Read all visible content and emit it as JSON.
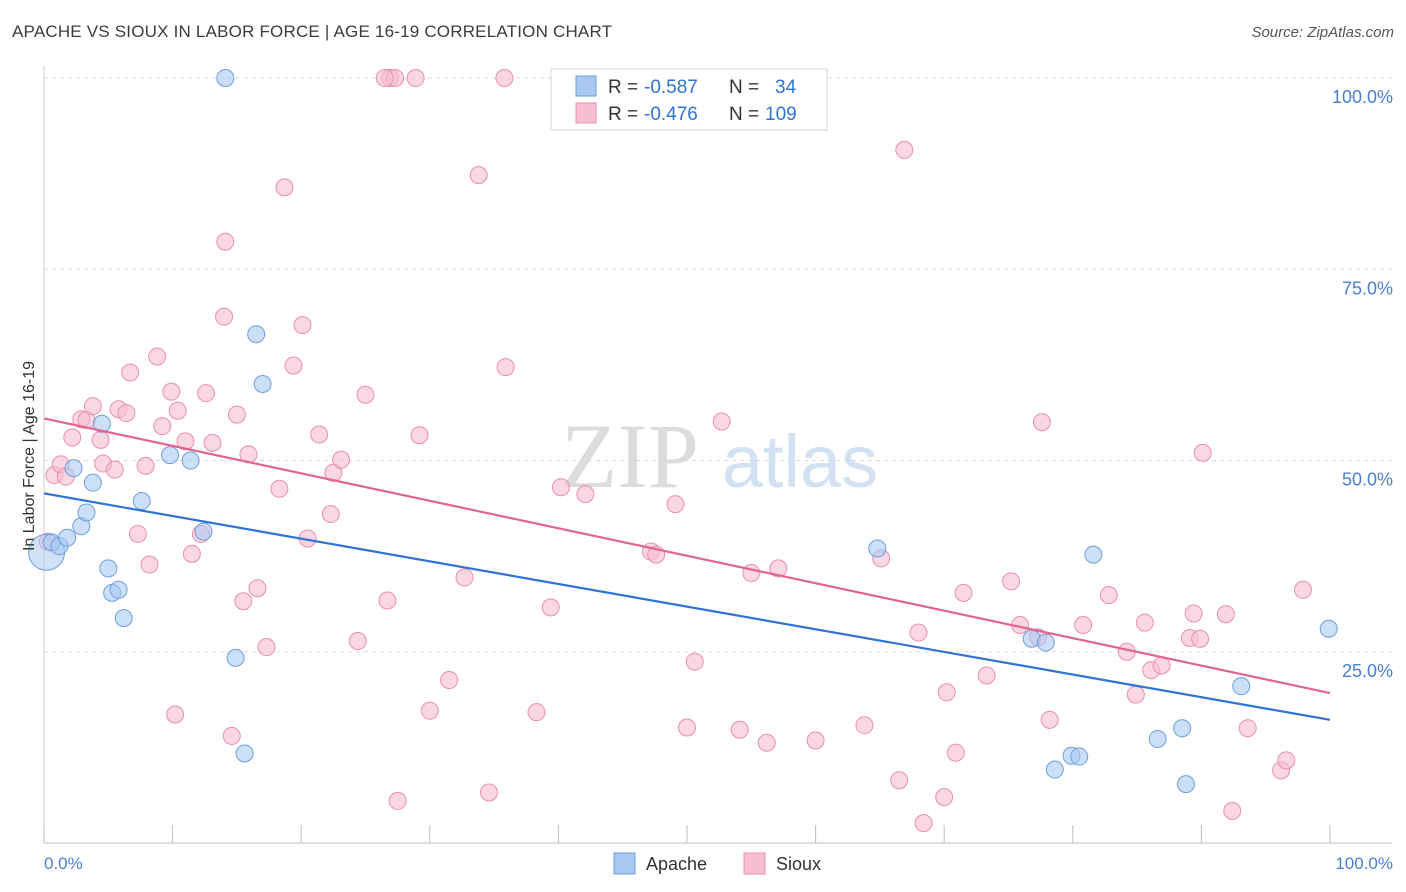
{
  "title": "APACHE VS SIOUX IN LABOR FORCE | AGE 16-19 CORRELATION CHART",
  "source": "Source: ZipAtlas.com",
  "watermark": {
    "zip": "ZIP",
    "atlas": "atlas"
  },
  "colors": {
    "apache_fill": "#a9c9f2",
    "apache_stroke": "#6f9fdb",
    "apache_line": "#2f73d6",
    "sioux_fill": "#f7bdd0",
    "sioux_stroke": "#ea8fae",
    "sioux_line": "#e2658f",
    "tick_label": "#4a7fd0",
    "grid": "#d9d9d9"
  },
  "chart_data": {
    "type": "scatter",
    "title": "APACHE VS SIOUX IN LABOR FORCE | AGE 16-19 CORRELATION CHART",
    "xlabel": "",
    "ylabel": "In Labor Force | Age 16-19",
    "xlim": [
      0,
      100
    ],
    "ylim": [
      0,
      100
    ],
    "x_tick_labels": [
      {
        "value": 0,
        "label": "0.0%"
      },
      {
        "value": 100,
        "label": "100.0%"
      }
    ],
    "y_tick_labels": [
      {
        "value": 25,
        "label": "25.0%"
      },
      {
        "value": 50,
        "label": "50.0%"
      },
      {
        "value": 75,
        "label": "75.0%"
      },
      {
        "value": 100,
        "label": "100.0%"
      }
    ],
    "grid": true,
    "legend": [
      {
        "name": "Apache",
        "r_label": "R =",
        "r_value": "-0.587",
        "n_label": "N =",
        "n_value": "34"
      },
      {
        "name": "Sioux",
        "r_label": "R =",
        "r_value": "-0.476",
        "n_label": "N =",
        "n_value": "109"
      }
    ],
    "series": [
      {
        "name": "Apache",
        "trend": {
          "x0": 0,
          "y0": 45.7,
          "x1": 100,
          "y1": 16.1
        },
        "points": [
          [
            0.2,
            38.0
          ],
          [
            0.6,
            39.3
          ],
          [
            1.2,
            38.8
          ],
          [
            1.8,
            39.9
          ],
          [
            2.3,
            49.0
          ],
          [
            2.9,
            41.4
          ],
          [
            3.3,
            43.2
          ],
          [
            3.8,
            47.1
          ],
          [
            4.5,
            54.8
          ],
          [
            5.0,
            35.9
          ],
          [
            5.3,
            32.7
          ],
          [
            5.8,
            33.1
          ],
          [
            6.2,
            29.4
          ],
          [
            7.6,
            44.7
          ],
          [
            9.8,
            50.7
          ],
          [
            11.4,
            50.0
          ],
          [
            12.4,
            40.7
          ],
          [
            14.1,
            100.0
          ],
          [
            14.9,
            24.2
          ],
          [
            15.6,
            11.7
          ],
          [
            16.5,
            66.5
          ],
          [
            17.0,
            60.0
          ],
          [
            64.8,
            38.5
          ],
          [
            76.8,
            26.7
          ],
          [
            77.9,
            26.2
          ],
          [
            78.6,
            9.6
          ],
          [
            79.9,
            11.4
          ],
          [
            80.5,
            11.3
          ],
          [
            81.6,
            37.7
          ],
          [
            86.6,
            13.6
          ],
          [
            88.5,
            15.0
          ],
          [
            88.8,
            7.7
          ],
          [
            93.1,
            20.5
          ],
          [
            99.9,
            28.0
          ]
        ]
      },
      {
        "name": "Sioux",
        "trend": {
          "x0": 0,
          "y0": 55.5,
          "x1": 100,
          "y1": 19.6
        },
        "points": [
          [
            0.3,
            39.4
          ],
          [
            0.8,
            48.1
          ],
          [
            1.3,
            49.5
          ],
          [
            1.7,
            47.9
          ],
          [
            2.2,
            53.0
          ],
          [
            2.9,
            55.4
          ],
          [
            3.3,
            55.3
          ],
          [
            3.8,
            57.1
          ],
          [
            4.4,
            52.7
          ],
          [
            4.6,
            49.6
          ],
          [
            5.5,
            48.8
          ],
          [
            5.8,
            56.7
          ],
          [
            6.4,
            56.2
          ],
          [
            6.7,
            61.5
          ],
          [
            7.3,
            40.4
          ],
          [
            7.9,
            49.3
          ],
          [
            8.2,
            36.4
          ],
          [
            8.8,
            63.6
          ],
          [
            9.2,
            54.5
          ],
          [
            9.9,
            59.0
          ],
          [
            10.2,
            16.8
          ],
          [
            10.4,
            56.5
          ],
          [
            11.0,
            52.5
          ],
          [
            11.5,
            37.8
          ],
          [
            12.2,
            40.4
          ],
          [
            12.6,
            58.8
          ],
          [
            13.1,
            52.3
          ],
          [
            14.1,
            78.6
          ],
          [
            14.0,
            68.8
          ],
          [
            14.6,
            14.0
          ],
          [
            15.0,
            56.0
          ],
          [
            15.5,
            31.6
          ],
          [
            15.9,
            50.8
          ],
          [
            16.6,
            33.3
          ],
          [
            17.3,
            25.6
          ],
          [
            18.3,
            46.3
          ],
          [
            18.7,
            85.7
          ],
          [
            19.4,
            62.4
          ],
          [
            20.1,
            67.7
          ],
          [
            20.5,
            39.8
          ],
          [
            21.4,
            53.4
          ],
          [
            22.3,
            43.0
          ],
          [
            22.5,
            48.4
          ],
          [
            23.1,
            50.1
          ],
          [
            24.4,
            26.4
          ],
          [
            25.0,
            58.6
          ],
          [
            26.7,
            31.7
          ],
          [
            26.9,
            100.0
          ],
          [
            27.3,
            100.0
          ],
          [
            27.5,
            5.5
          ],
          [
            28.9,
            100.0
          ],
          [
            29.2,
            53.3
          ],
          [
            30.0,
            17.3
          ],
          [
            31.5,
            21.3
          ],
          [
            32.7,
            34.7
          ],
          [
            33.8,
            87.3
          ],
          [
            34.6,
            6.6
          ],
          [
            35.8,
            100.0
          ],
          [
            35.9,
            62.2
          ],
          [
            38.3,
            17.1
          ],
          [
            39.4,
            30.8
          ],
          [
            40.2,
            46.5
          ],
          [
            42.1,
            45.6
          ],
          [
            44.1,
            100.0
          ],
          [
            47.2,
            38.1
          ],
          [
            47.6,
            37.7
          ],
          [
            49.1,
            44.3
          ],
          [
            50.0,
            15.1
          ],
          [
            50.6,
            23.7
          ],
          [
            52.7,
            55.1
          ],
          [
            54.1,
            14.8
          ],
          [
            55.0,
            35.3
          ],
          [
            56.2,
            13.1
          ],
          [
            57.1,
            35.9
          ],
          [
            60.0,
            13.4
          ],
          [
            63.8,
            15.4
          ],
          [
            65.1,
            37.2
          ],
          [
            66.5,
            8.2
          ],
          [
            66.9,
            90.6
          ],
          [
            68.0,
            27.5
          ],
          [
            68.4,
            2.6
          ],
          [
            70.0,
            6.0
          ],
          [
            70.2,
            19.7
          ],
          [
            70.9,
            11.8
          ],
          [
            71.5,
            32.7
          ],
          [
            73.3,
            21.9
          ],
          [
            75.2,
            34.2
          ],
          [
            75.9,
            28.5
          ],
          [
            77.3,
            26.9
          ],
          [
            77.6,
            55.0
          ],
          [
            78.2,
            16.1
          ],
          [
            80.8,
            28.5
          ],
          [
            82.8,
            32.4
          ],
          [
            84.2,
            25.0
          ],
          [
            84.9,
            19.4
          ],
          [
            85.6,
            28.8
          ],
          [
            86.1,
            22.6
          ],
          [
            86.9,
            23.2
          ],
          [
            89.1,
            26.8
          ],
          [
            89.4,
            30.0
          ],
          [
            89.9,
            26.7
          ],
          [
            90.1,
            51.0
          ],
          [
            91.9,
            29.9
          ],
          [
            92.4,
            4.2
          ],
          [
            93.6,
            15.0
          ],
          [
            96.2,
            9.5
          ],
          [
            96.6,
            10.8
          ],
          [
            97.9,
            33.1
          ],
          [
            26.5,
            100.0
          ]
        ]
      }
    ]
  }
}
